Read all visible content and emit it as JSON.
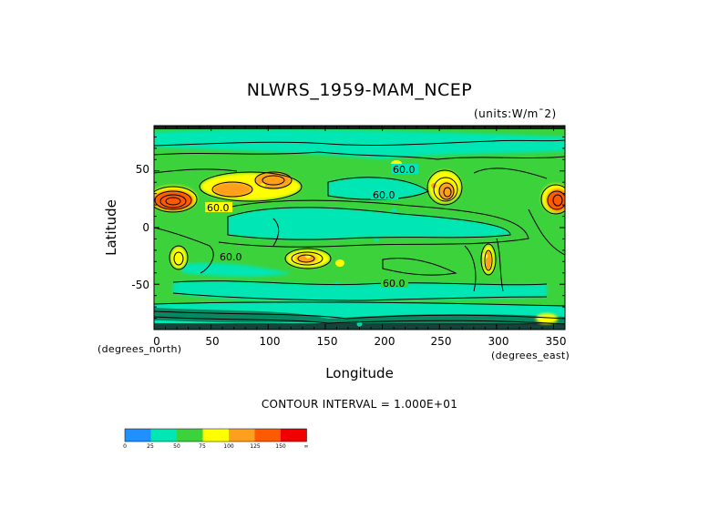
{
  "chart_data": {
    "type": "heatmap",
    "title": "NLWRS_1959-MAM_NCEP",
    "units": "(units:W/m^2)",
    "xlabel": "Longitude",
    "ylabel": "Latitude",
    "x_unit_label": "(degrees_east)",
    "y_unit_label": "(degrees_north)",
    "xlim": [
      0,
      360
    ],
    "ylim": [
      -90,
      90
    ],
    "x_ticks": [
      "0",
      "50",
      "100",
      "150",
      "200",
      "250",
      "300",
      "350"
    ],
    "y_ticks": [
      "50",
      "0",
      "-50"
    ],
    "contour_interval_text": "CONTOUR INTERVAL = 1.000E+01",
    "contour_labels": [
      "60.0",
      "60.0",
      "60.0",
      "60.0",
      "60.0"
    ],
    "colorbar": {
      "levels": [
        "0",
        "25",
        "50",
        "75",
        "100",
        "125",
        "150",
        "∞"
      ],
      "colors": [
        "#1e90ff",
        "#00e6b4",
        "#3cd23c",
        "#ffff00",
        "#ff9f1e",
        "#ff5a00",
        "#f00000"
      ]
    },
    "features": [
      {
        "lon": 12,
        "lat": 25,
        "value": 130
      },
      {
        "lon": 350,
        "lat": 25,
        "value": 130
      },
      {
        "lon": 60,
        "lat": 35,
        "value": 100
      },
      {
        "lon": 95,
        "lat": 37,
        "value": 95
      },
      {
        "lon": 245,
        "lat": 37,
        "value": 100
      },
      {
        "lon": 135,
        "lat": -25,
        "value": 95
      },
      {
        "lon": 290,
        "lat": -25,
        "value": 90
      },
      {
        "lon": 20,
        "lat": -25,
        "value": 85
      },
      {
        "lon": 210,
        "lat": 15,
        "value": 40
      },
      {
        "lon": 200,
        "lat": 0,
        "value": 38
      },
      {
        "lon": 195,
        "lat": -10,
        "value": 42
      },
      {
        "lon": 160,
        "lat": -50,
        "value": 42
      },
      {
        "lon": 180,
        "lat": 70,
        "value": 42
      },
      {
        "lon": 100,
        "lat": 5,
        "value": 45
      },
      {
        "lon": 180,
        "lat": -85,
        "value": 40
      }
    ]
  }
}
